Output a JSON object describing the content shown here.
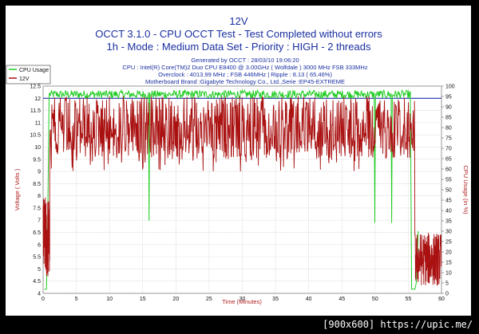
{
  "chart_data": {
    "type": "line",
    "title": "12V",
    "subtitle_lines": [
      "OCCT 3.1.0 - CPU OCCT Test - Test Completed without errors",
      "1h - Mode : Medium Data Set - Priority : HIGH - 2 threads"
    ],
    "info_lines": [
      "Generated by OCCT : 28/03/10 19:06:20",
      "CPU : Intel(R) Core(TM)2 Duo CPU E8400 @ 3.00GHz ( Wolfdale ) 3000 MHz FSB 333MHz",
      "Overclock : 4013.99 MHz ; FSB 446MHz | Ripple : 8.13 ( 65.46%)",
      "Motherboard Brand :Gigabyte Technology Co., Ltd.,Serie :EP45-EXTREME"
    ],
    "xlabel": "Time (Minutes)",
    "ylabel": "Voltage ( Volts )",
    "y2label": "CPU Usage (in %)",
    "xlim": [
      0,
      60
    ],
    "ylim": [
      4,
      12.5
    ],
    "y2lim": [
      0,
      100
    ],
    "x_ticks": [
      "0",
      "5",
      "10",
      "15",
      "20",
      "25",
      "30",
      "35",
      "40",
      "45",
      "50",
      "55",
      "60"
    ],
    "y_ticks": [
      "4",
      "4.5",
      "5",
      "5.5",
      "6",
      "6.5",
      "7",
      "7.5",
      "8",
      "8.5",
      "9",
      "9.5",
      "10",
      "10.5",
      "11",
      "11.5",
      "12",
      "12.5"
    ],
    "y2_ticks": [
      "0",
      "5",
      "10",
      "15",
      "20",
      "25",
      "30",
      "35",
      "40",
      "45",
      "50",
      "55",
      "60",
      "65",
      "70",
      "75",
      "80",
      "85",
      "90",
      "95",
      "100"
    ],
    "grid": true,
    "legend_position": "top-left",
    "series": [
      {
        "name": "CPU Usage",
        "color": "#22cc22",
        "axis": "y2",
        "description_values": {
          "typical": 96,
          "dips_at_minutes": [
            16,
            50,
            52.5,
            55.4
          ]
        }
      },
      {
        "name": "12V",
        "color": "#aa1111",
        "axis": "y",
        "description_values": {
          "band_low": 9.5,
          "band_high": 12.1,
          "tail_after_minute": 56,
          "tail_range": [
            4.3,
            6.5
          ]
        }
      }
    ],
    "reference_line": {
      "y": 12,
      "color": "#2233aa"
    }
  },
  "footer": {
    "text": "[900x600] https://upic.me/"
  }
}
